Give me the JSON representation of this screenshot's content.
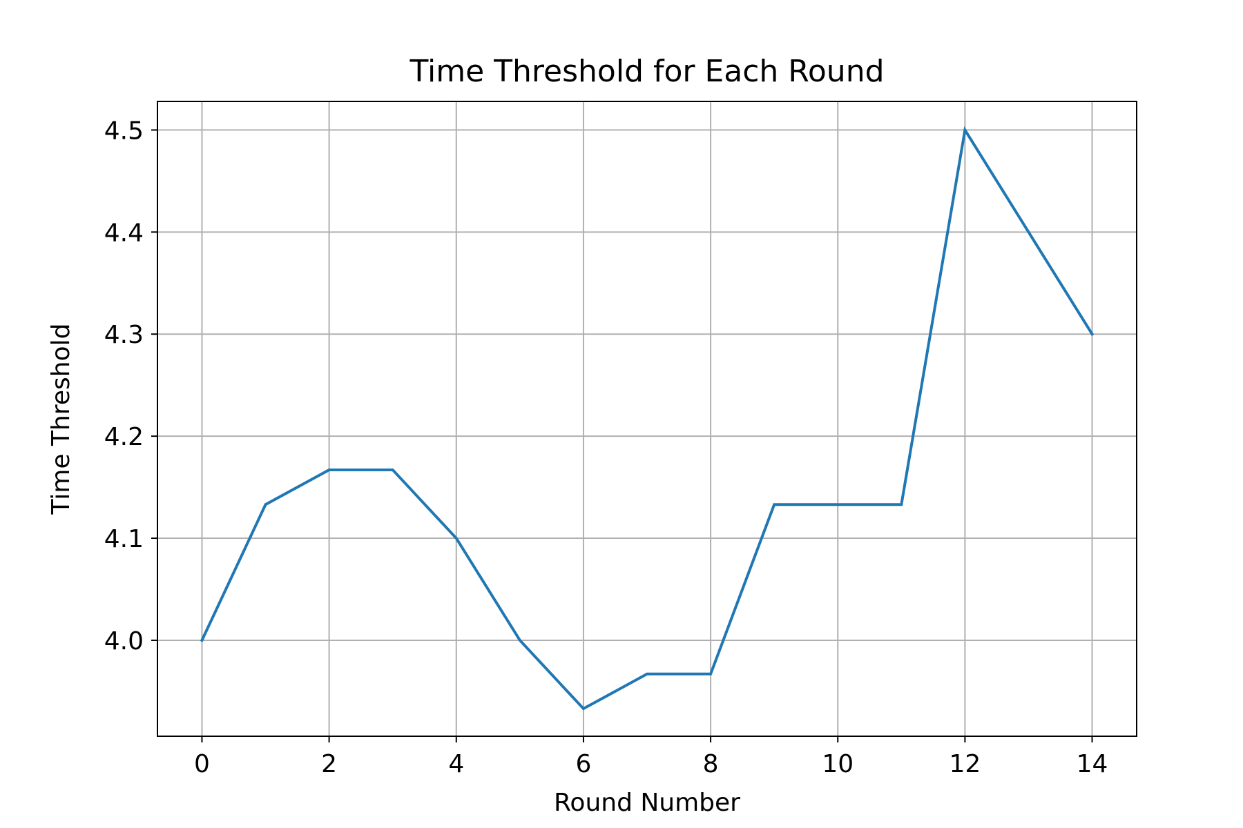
{
  "chart_data": {
    "type": "line",
    "title": "Time Threshold for Each Round",
    "xlabel": "Round Number",
    "ylabel": "Time Threshold",
    "x": [
      0,
      1,
      2,
      3,
      4,
      5,
      6,
      7,
      8,
      9,
      10,
      11,
      12,
      13,
      14
    ],
    "series": [
      {
        "values": [
          4.0,
          4.133,
          4.167,
          4.167,
          4.1,
          4.0,
          3.933,
          3.967,
          3.967,
          4.133,
          4.133,
          4.133,
          4.5,
          4.4,
          4.3
        ],
        "color": "#1f77b4"
      }
    ],
    "xticks": [
      "0",
      "2",
      "4",
      "6",
      "8",
      "10",
      "12",
      "14"
    ],
    "yticks": [
      "4.0",
      "4.1",
      "4.2",
      "4.3",
      "4.4",
      "4.5"
    ],
    "xlim": [
      -0.7,
      14.7
    ],
    "ylim": [
      3.906,
      4.528
    ],
    "grid": true,
    "colors": {
      "grid": "#b0b0b0",
      "axes": "#000000",
      "background": "#ffffff"
    }
  }
}
